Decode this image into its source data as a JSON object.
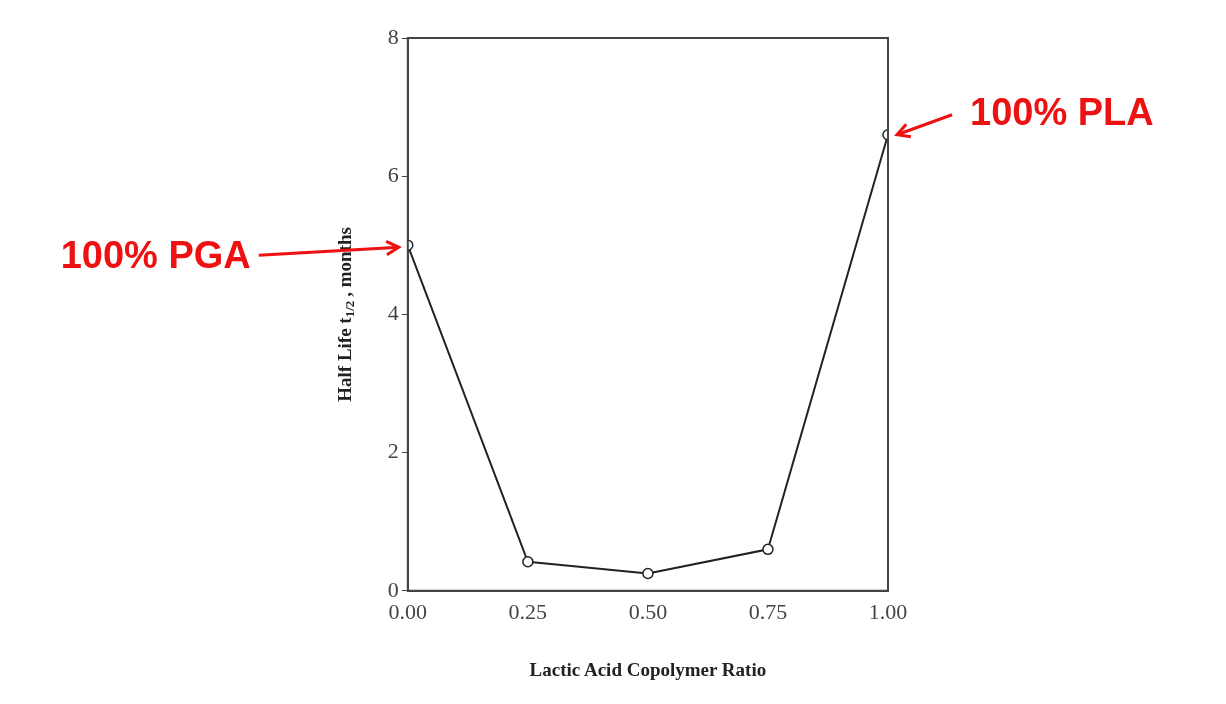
{
  "chart_data": {
    "type": "line",
    "xlabel": "Lactic Acid Copolymer Ratio",
    "ylabel": "Half Life t$_{1/2}$, months",
    "x": [
      0,
      0.25,
      0.5,
      0.75,
      1
    ],
    "series": [
      {
        "color": "#222222",
        "values": [
          5.0,
          0.42,
          0.25,
          0.6,
          6.6
        ]
      }
    ],
    "xlim": [
      0,
      1
    ],
    "xticks": [
      {
        "value": 0,
        "label": "0.00"
      },
      {
        "value": 0.25,
        "label": "0.25"
      },
      {
        "value": 0.5,
        "label": "0.50"
      },
      {
        "value": 0.75,
        "label": "0.75"
      },
      {
        "value": 1,
        "label": "1.00"
      }
    ],
    "ylim": [
      0,
      8
    ],
    "yticks": [
      0,
      2,
      4,
      6,
      8
    ],
    "marker": "circle",
    "line_style": "solid",
    "grid": false,
    "legend": false,
    "annotations": [
      {
        "text": "100% PGA",
        "x": 0,
        "y": 5.0
      },
      {
        "text": "100% PLA",
        "x": 1,
        "y": 6.6
      }
    ]
  }
}
